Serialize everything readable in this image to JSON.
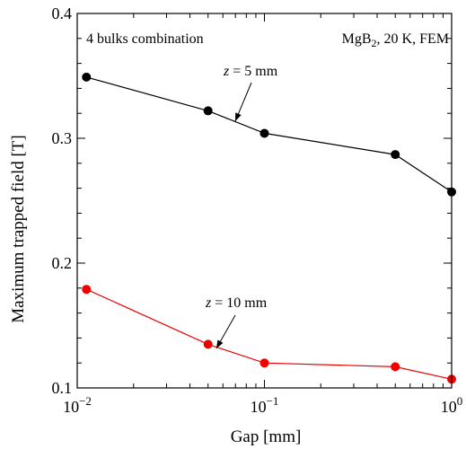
{
  "chart_data": {
    "type": "line",
    "title": "",
    "xlabel": "Gap [mm]",
    "ylabel": "Maximum trapped field [T]",
    "x_scale": "log",
    "xlim": [
      0.01,
      1
    ],
    "ylim": [
      0.1,
      0.4
    ],
    "x_ticks": [
      {
        "base": "10",
        "exp": "−2",
        "value": 0.01
      },
      {
        "base": "10",
        "exp": "−1",
        "value": 0.1
      },
      {
        "base": "10",
        "exp": "0",
        "value": 1
      }
    ],
    "y_ticks": [
      {
        "label": "0.1",
        "value": 0.1
      },
      {
        "label": "0.2",
        "value": 0.2
      },
      {
        "label": "0.3",
        "value": 0.3
      },
      {
        "label": "0.4",
        "value": 0.4
      }
    ],
    "grid": false,
    "series": [
      {
        "name": "z = 5 mm",
        "color": "#000000",
        "x": [
          0.0112,
          0.05,
          0.1,
          0.5,
          1.0
        ],
        "y": [
          0.349,
          0.322,
          0.304,
          0.287,
          0.257
        ]
      },
      {
        "name": "z = 10 mm",
        "color": "#ee0000",
        "x": [
          0.0112,
          0.05,
          0.1,
          0.5,
          1.0
        ],
        "y": [
          0.179,
          0.135,
          0.12,
          0.117,
          0.107
        ]
      }
    ],
    "annotations": {
      "top_left": "4 bulks combination",
      "top_right_prefix": "MgB",
      "top_right_sub": "2",
      "top_right_suffix": ", 20 K, FEM",
      "label_5": {
        "var": "z",
        "rest": " = 5 mm"
      },
      "label_10": {
        "var": "z",
        "rest": " = 10 mm"
      }
    }
  }
}
